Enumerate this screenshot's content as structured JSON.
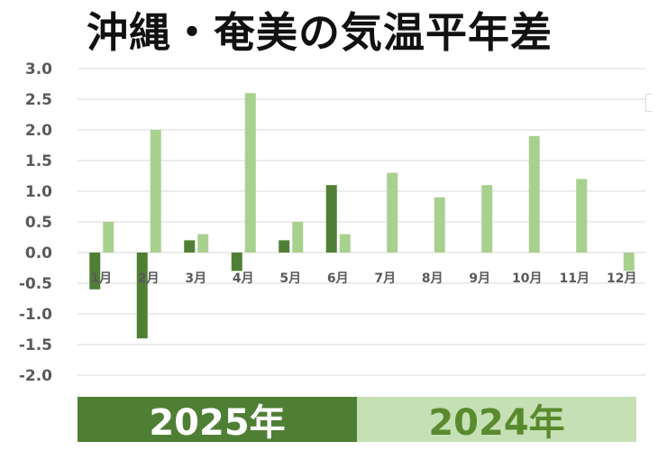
{
  "title": "沖縄・奄美の気温平年差",
  "colors": {
    "series_2025": "#4f7f34",
    "series_2024": "#a9d18e",
    "grid": "#d9d9d9",
    "tick_text": "#595959"
  },
  "chart_data": {
    "type": "bar",
    "title": "沖縄・奄美の気温平年差",
    "categories": [
      "1月",
      "2月",
      "3月",
      "4月",
      "5月",
      "6月",
      "7月",
      "8月",
      "9月",
      "10月",
      "11月",
      "12月"
    ],
    "series": [
      {
        "name": "2025年",
        "values": [
          -0.6,
          -1.4,
          0.2,
          -0.3,
          0.2,
          1.1,
          null,
          null,
          null,
          null,
          null,
          null
        ]
      },
      {
        "name": "2024年",
        "values": [
          0.5,
          2.0,
          0.3,
          2.6,
          0.5,
          0.3,
          1.3,
          0.9,
          1.1,
          1.9,
          1.2,
          -0.3
        ]
      }
    ],
    "yticks": [
      "3.0",
      "2.5",
      "2.0",
      "1.5",
      "1.0",
      "0.5",
      "0.0",
      "-0.5",
      "-1.0",
      "-1.5",
      "-2.0"
    ],
    "ylim": [
      -2.0,
      3.0
    ],
    "grid": true,
    "legend_position": "bottom"
  },
  "legend": {
    "label_2025": "2025年",
    "label_2024": "2024年"
  }
}
